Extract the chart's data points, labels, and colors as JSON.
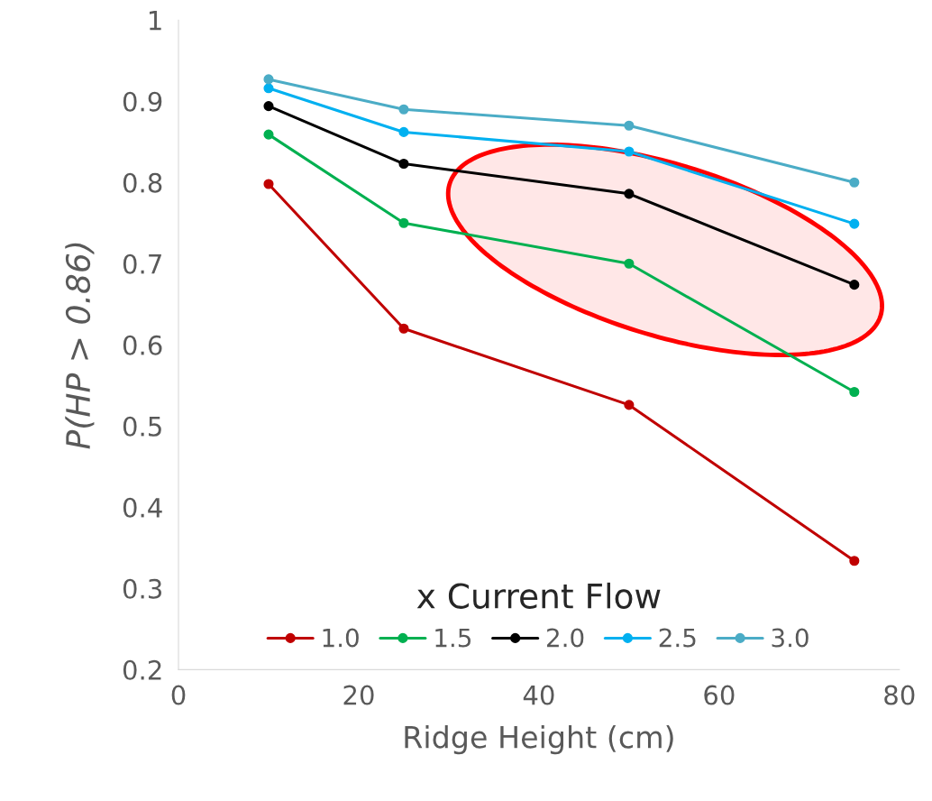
{
  "chart_data": {
    "type": "line",
    "xlabel": "Ridge Height (cm)",
    "ylabel": "P(HP > 0.86)",
    "legend_title": "x Current Flow",
    "x": [
      10,
      25,
      50,
      75
    ],
    "series": [
      {
        "name": "1.0",
        "color": "#c00000",
        "values": [
          0.798,
          0.62,
          0.526,
          0.334
        ]
      },
      {
        "name": "1.5",
        "color": "#00b050",
        "values": [
          0.859,
          0.75,
          0.7,
          0.542
        ]
      },
      {
        "name": "2.0",
        "color": "#000000",
        "values": [
          0.894,
          0.823,
          0.786,
          0.674
        ]
      },
      {
        "name": "2.5",
        "color": "#00b0f0",
        "values": [
          0.916,
          0.862,
          0.838,
          0.749
        ]
      },
      {
        "name": "3.0",
        "color": "#4bacc6",
        "values": [
          0.927,
          0.89,
          0.87,
          0.8
        ]
      }
    ],
    "xlim": [
      0,
      80
    ],
    "xticks": [
      0,
      20,
      40,
      60,
      80
    ],
    "ylim": [
      0.2,
      1
    ],
    "yticks": [
      0.2,
      0.3,
      0.4,
      0.5,
      0.6,
      0.7,
      0.8,
      0.9,
      1
    ],
    "marker": "circle",
    "line_style": "solid",
    "grid": false,
    "legend": "bottom"
  }
}
